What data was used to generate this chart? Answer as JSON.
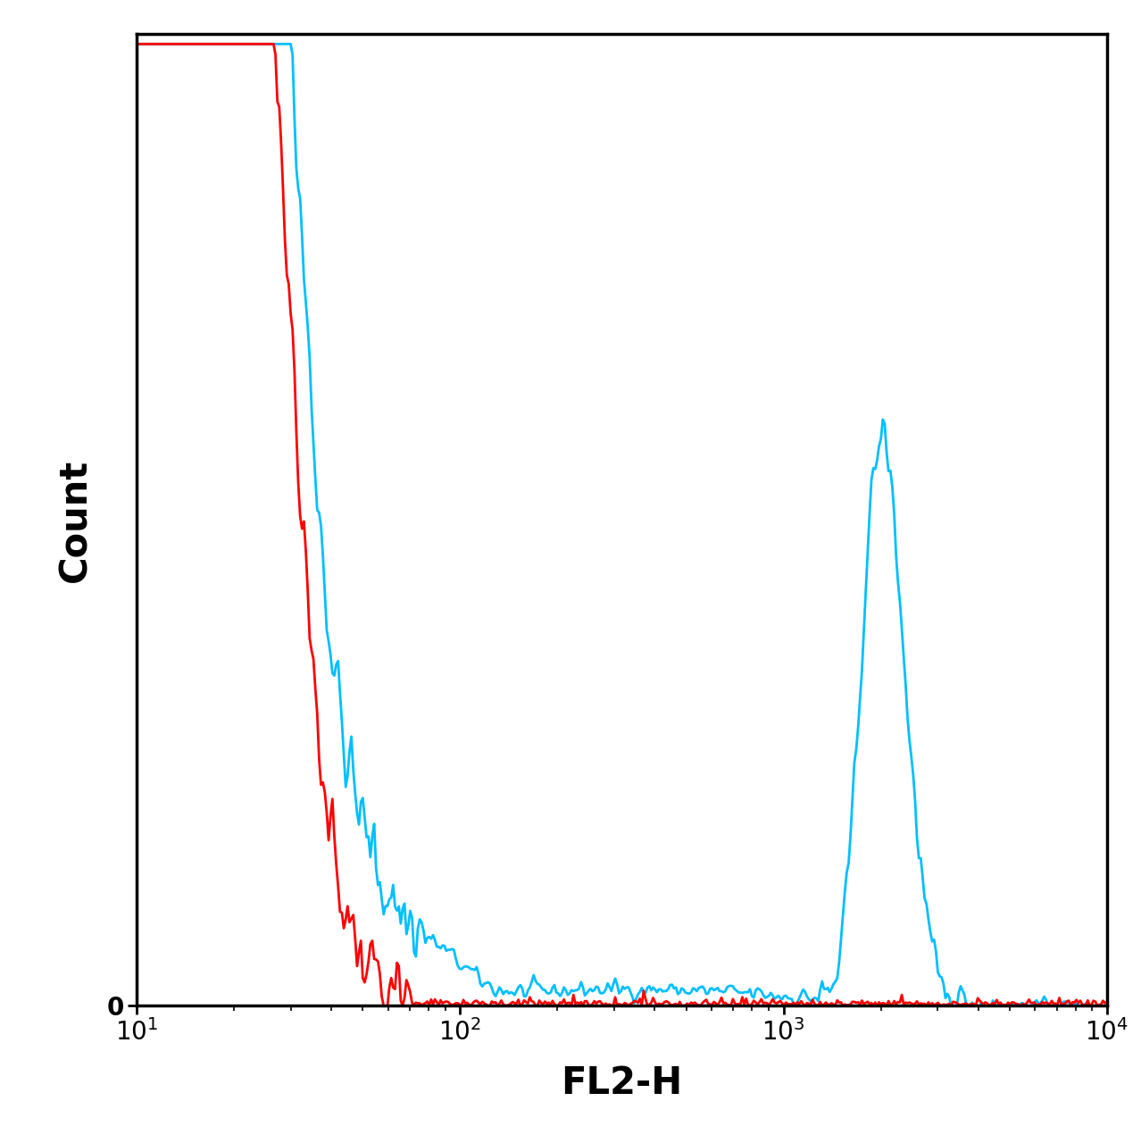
{
  "xlabel": "FL2-H",
  "ylabel": "Count",
  "xlim_log": [
    10,
    10000
  ],
  "ylim": [
    0,
    1050
  ],
  "background_color": "#ffffff",
  "cyan_color": "#00BFFF",
  "red_color": "#FF0000",
  "linewidth": 2.0,
  "tick_labelsize": 20,
  "axis_labelsize": 30,
  "fig_width": 12.78,
  "fig_height": 12.8,
  "dpi": 100
}
